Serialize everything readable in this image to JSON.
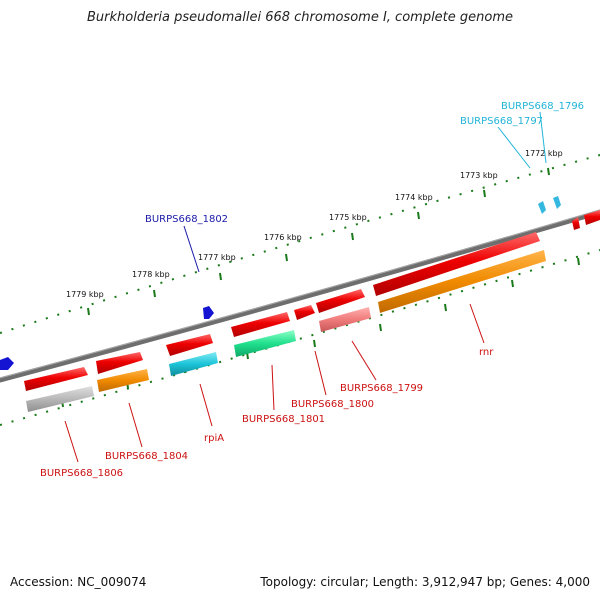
{
  "title": "Burkholderia pseudomallei 668 chromosome I, complete genome",
  "footer": {
    "accession": "Accession: NC_009074",
    "topology": "Topology: circular; Length: 3,912,947 bp; Genes: 4,000"
  },
  "ticks": [
    "1779 kbp",
    "1778 kbp",
    "1777 kbp",
    "1776 kbp",
    "1775 kbp",
    "1774 kbp",
    "1773 kbp",
    "1772 kbp"
  ],
  "colors": {
    "backbone": "#6e6e6e",
    "tick_mark": "#1a7a1a",
    "label_red": "#cc1111",
    "label_blue": "#1a1aa8",
    "label_cyan": "#22b4d8"
  },
  "genes": [
    {
      "label": "BURPS668_1806",
      "color": "#cc1111"
    },
    {
      "label": "BURPS668_1804",
      "color": "#cc1111"
    },
    {
      "label": "rpiA",
      "color": "#cc1111"
    },
    {
      "label": "BURPS668_1801",
      "color": "#cc1111"
    },
    {
      "label": "BURPS668_1800",
      "color": "#cc1111"
    },
    {
      "label": "BURPS668_1799",
      "color": "#cc1111"
    },
    {
      "label": "rnr",
      "color": "#cc1111"
    },
    {
      "label": "BURPS668_1802",
      "color": "#1a1aa8"
    },
    {
      "label": "BURPS668_1797",
      "color": "#22b4d8"
    },
    {
      "label": "BURPS668_1796",
      "color": "#22b4d8"
    }
  ]
}
